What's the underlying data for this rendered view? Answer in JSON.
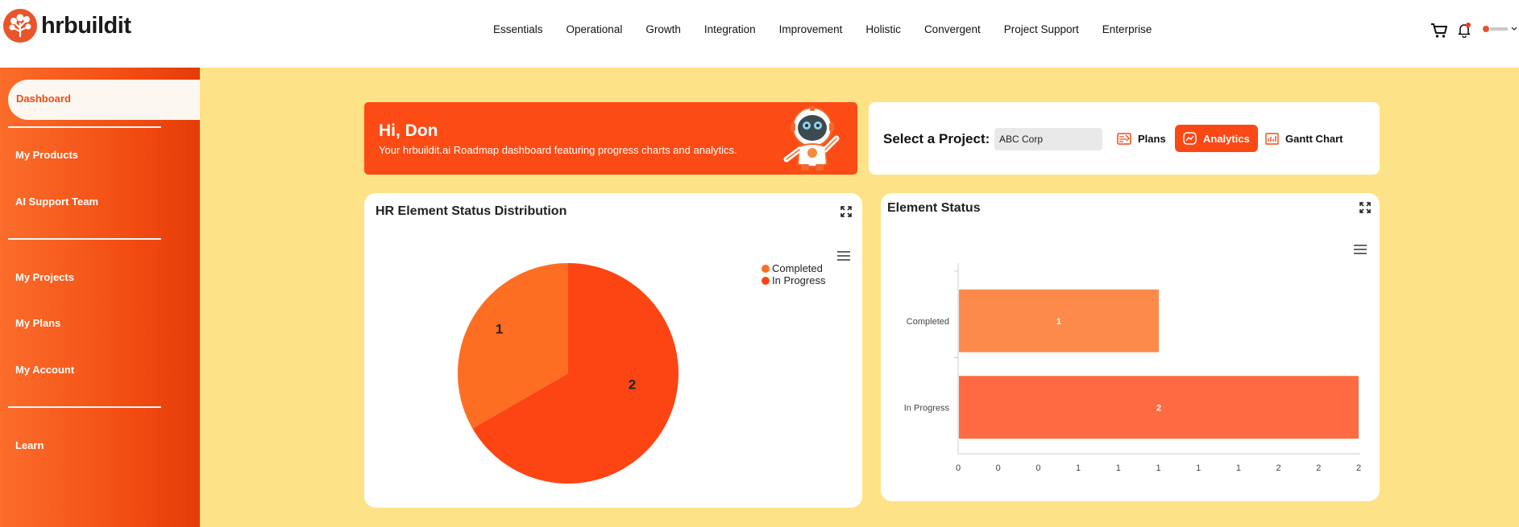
{
  "header": {
    "brand": "hrbuildit",
    "nav": [
      "Essentials",
      "Operational",
      "Growth",
      "Integration",
      "Improvement",
      "Holistic",
      "Convergent",
      "Project Support",
      "Enterprise"
    ]
  },
  "sidebar": {
    "items": [
      {
        "label": "Dashboard",
        "active": true
      },
      {
        "label": "My Products"
      },
      {
        "label": "AI Support Team"
      },
      {
        "label": "My Projects"
      },
      {
        "label": "My Plans"
      },
      {
        "label": "My Account"
      },
      {
        "label": "Learn"
      }
    ]
  },
  "greeting": {
    "title": "Hi, Don",
    "subtitle": "Your hrbuildit.ai Roadmap dashboard featuring progress charts and analytics."
  },
  "project": {
    "label": "Select a Project:",
    "selected": "ABC Corp",
    "buttons": {
      "plans": "Plans",
      "analytics": "Analytics",
      "gantt": "Gantt Chart"
    }
  },
  "colors": {
    "accent": "#fc4b15",
    "background": "#fde287",
    "completed_pie": "#fd6e22",
    "in_progress_pie": "#fd4514",
    "completed_bar": "#fd8a4a",
    "in_progress_bar": "#fe6a42"
  },
  "chart_data": [
    {
      "type": "pie",
      "title": "HR Element Status Distribution",
      "categories": [
        "Completed",
        "In Progress"
      ],
      "values": [
        1,
        2
      ],
      "legend": "top-right"
    },
    {
      "type": "bar",
      "orientation": "horizontal",
      "title": "Element Status",
      "categories": [
        "Completed",
        "In Progress"
      ],
      "values": [
        1,
        2
      ],
      "xticks": [
        "0",
        "0",
        "0",
        "1",
        "1",
        "1",
        "1",
        "1",
        "2",
        "2",
        "2"
      ],
      "xlim": [
        0,
        2
      ]
    }
  ]
}
